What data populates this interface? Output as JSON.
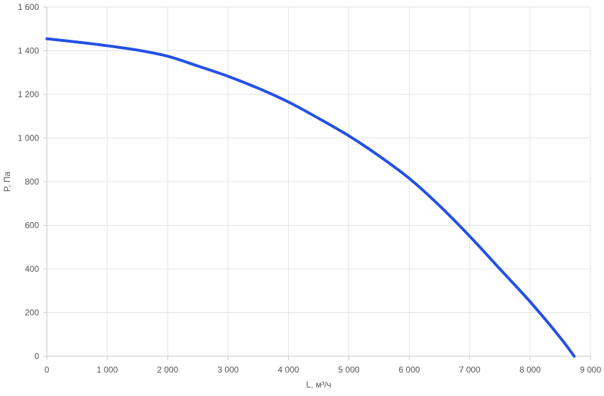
{
  "chart_data": {
    "type": "line",
    "xlabel": "L, м³/ч",
    "ylabel": "P, Па",
    "xlim": [
      0,
      9000
    ],
    "ylim": [
      0,
      1600
    ],
    "x_ticks": [
      0,
      1000,
      2000,
      3000,
      4000,
      5000,
      6000,
      7000,
      8000,
      9000
    ],
    "x_tick_labels": [
      "0",
      "1 000",
      "2 000",
      "3 000",
      "4 000",
      "5 000",
      "6 000",
      "7 000",
      "8 000",
      "9 000"
    ],
    "y_ticks": [
      0,
      200,
      400,
      600,
      800,
      1000,
      1200,
      1400,
      1600
    ],
    "y_tick_labels": [
      "0",
      "200",
      "400",
      "600",
      "800",
      "1 000",
      "1 200",
      "1 400",
      "1 600"
    ],
    "grid": true,
    "legend": false,
    "series": [
      {
        "color": "#2450e6",
        "x": [
          0,
          500,
          1000,
          1500,
          2000,
          2500,
          3000,
          3500,
          4000,
          4500,
          5000,
          5500,
          6000,
          6500,
          7000,
          7500,
          8000,
          8500,
          8730
        ],
        "y": [
          1455,
          1440,
          1423,
          1403,
          1375,
          1330,
          1283,
          1228,
          1165,
          1090,
          1010,
          918,
          815,
          690,
          550,
          400,
          250,
          85,
          0
        ]
      }
    ]
  }
}
